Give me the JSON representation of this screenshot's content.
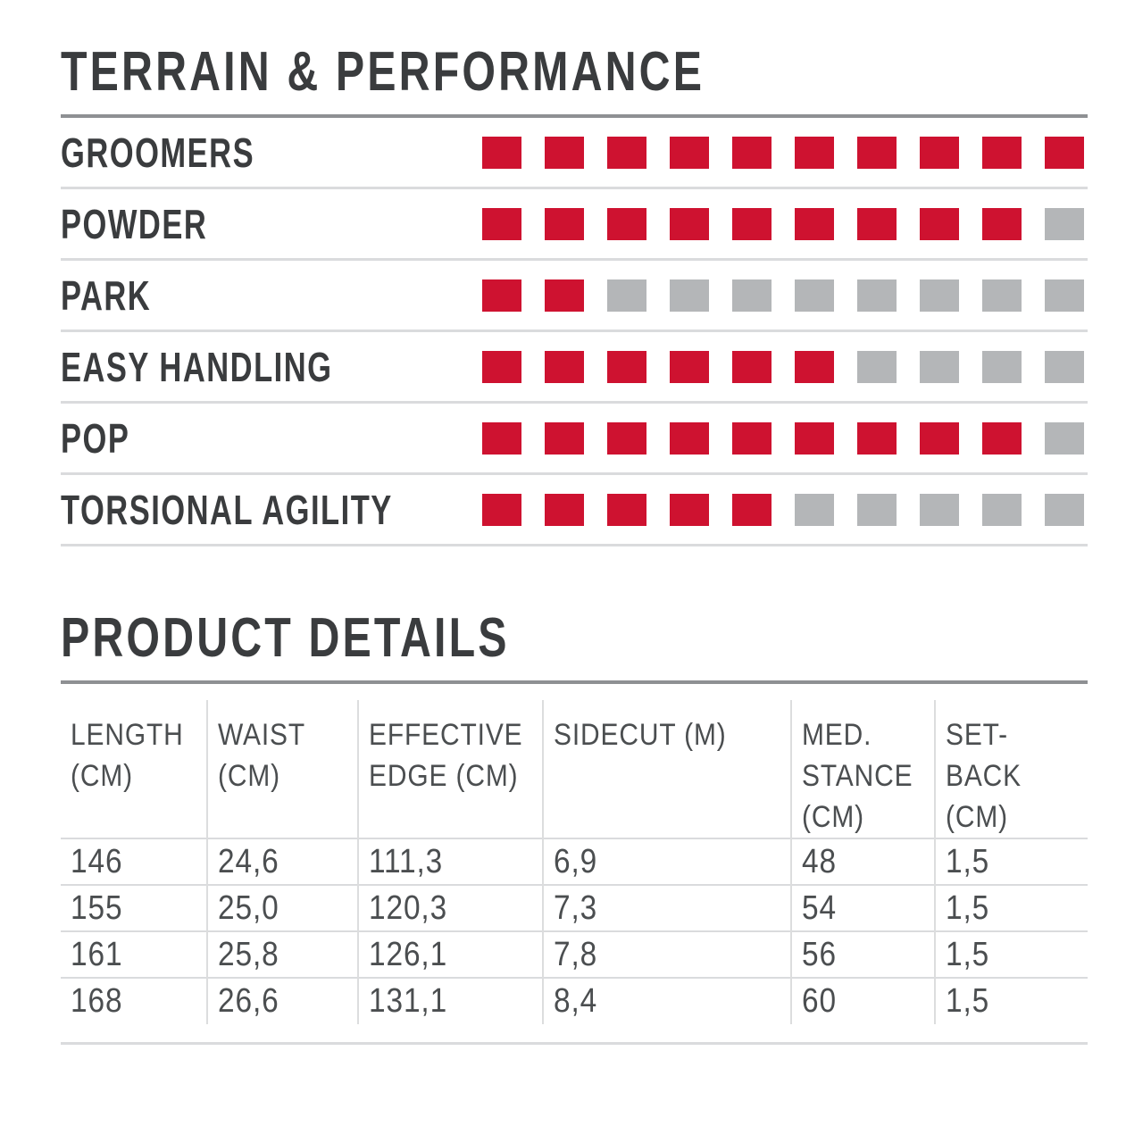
{
  "colors": {
    "accent_red": "#ce1230",
    "inactive_gray": "#b4b6b8",
    "heading_text": "#3a3c3e",
    "table_text": "#4b4e50",
    "rule_dark": "#8e9093",
    "rule_light": "#dadbdd"
  },
  "terrain_performance": {
    "title": "TERRAIN & PERFORMANCE",
    "max": 10,
    "ratings": [
      {
        "label": "GROOMERS",
        "value": 10
      },
      {
        "label": "POWDER",
        "value": 9
      },
      {
        "label": "PARK",
        "value": 2
      },
      {
        "label": "EASY HANDLING",
        "value": 6
      },
      {
        "label": "POP",
        "value": 9
      },
      {
        "label": "TORSIONAL AGILITY",
        "value": 5
      }
    ]
  },
  "product_details": {
    "title": "PRODUCT DETAILS",
    "columns": [
      "LENGTH (CM)",
      "WAIST (CM)",
      "EFFECTIVE EDGE (CM)",
      "SIDECUT (M)",
      "MED. STANCE (CM)",
      "SET-BACK (CM)"
    ],
    "rows": [
      [
        "146",
        "24,6",
        "111,3",
        "6,9",
        "48",
        "1,5"
      ],
      [
        "155",
        "25,0",
        "120,3",
        "7,3",
        "54",
        "1,5"
      ],
      [
        "161",
        "25,8",
        "126,1",
        "7,8",
        "56",
        "1,5"
      ],
      [
        "168",
        "26,6",
        "131,1",
        "8,4",
        "60",
        "1,5"
      ]
    ]
  }
}
